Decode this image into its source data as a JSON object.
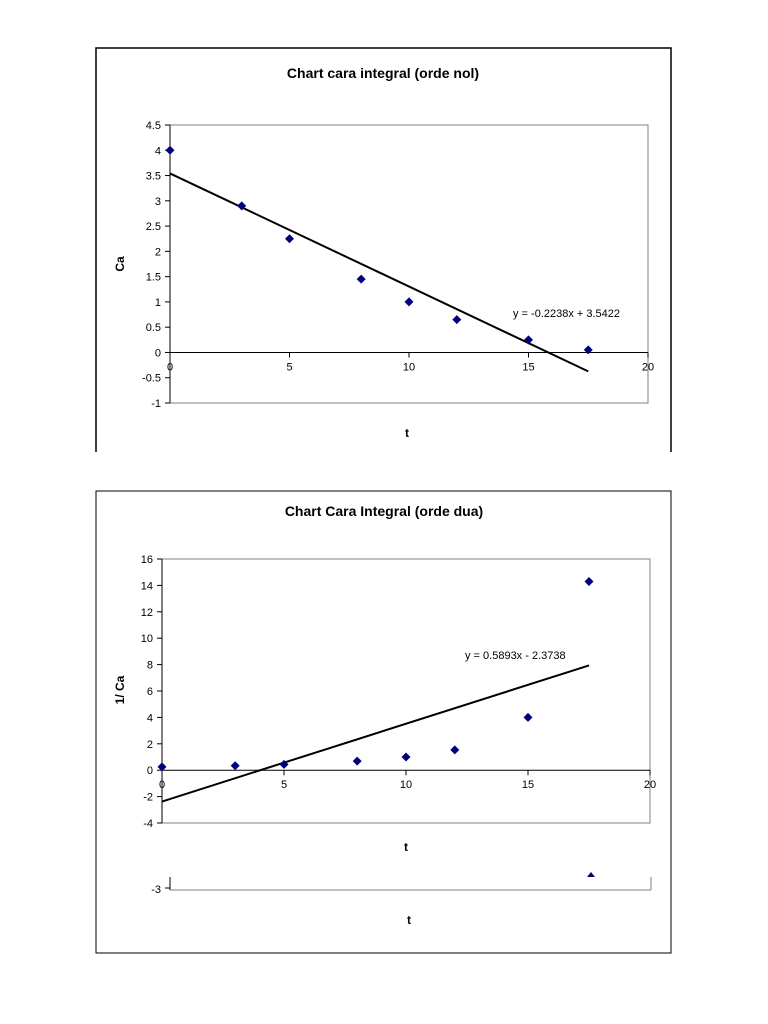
{
  "chart_data": [
    {
      "type": "scatter",
      "title": "Chart cara integral (orde nol)",
      "xlabel": "t",
      "ylabel": "Ca",
      "xlim": [
        0,
        20
      ],
      "ylim": [
        -1,
        4.5
      ],
      "xticks": [
        0,
        5,
        10,
        15,
        20
      ],
      "xtick_labels": [
        "0",
        "5",
        "10",
        "15",
        "20"
      ],
      "yticks": [
        -1,
        -0.5,
        0,
        0.5,
        1,
        1.5,
        2,
        2.5,
        3,
        3.5,
        4,
        4.5
      ],
      "ytick_labels": [
        "-1",
        "-0.5",
        "0",
        "0.5",
        "1",
        "1.5",
        "2",
        "2.5",
        "3",
        "3.5",
        "4",
        "4.5"
      ],
      "series": [
        {
          "x": [
            0,
            3,
            5,
            8,
            10,
            12,
            15,
            17.5
          ],
          "y": [
            4.0,
            2.9,
            2.25,
            1.45,
            1.0,
            0.65,
            0.25,
            0.05
          ],
          "color": "#00007f"
        }
      ],
      "trendline": {
        "slope": -0.2238,
        "intercept": 3.5422,
        "x_range": [
          0,
          17.5
        ]
      },
      "equation": "y = -0.2238x + 3.5422",
      "grid": false
    },
    {
      "type": "scatter",
      "title": "Chart Cara Integral (orde dua)",
      "xlabel": "t",
      "ylabel": "1/ Ca",
      "xlim": [
        0,
        20
      ],
      "ylim": [
        -4,
        16
      ],
      "xticks": [
        0,
        5,
        10,
        15,
        20
      ],
      "xtick_labels": [
        "0",
        "5",
        "10",
        "15",
        "20"
      ],
      "yticks": [
        -4,
        -2,
        0,
        2,
        4,
        6,
        8,
        10,
        12,
        14,
        16
      ],
      "ytick_labels": [
        "-4",
        "-2",
        "0",
        "2",
        "4",
        "6",
        "8",
        "10",
        "12",
        "14",
        "16"
      ],
      "series": [
        {
          "x": [
            0,
            3,
            5,
            8,
            10,
            12,
            15,
            17.5
          ],
          "y": [
            0.25,
            0.34,
            0.44,
            0.69,
            1.0,
            1.54,
            4.0,
            14.3
          ],
          "color": "#00007f"
        }
      ],
      "trendline": {
        "slope": 0.5893,
        "intercept": -2.3738,
        "x_range": [
          0,
          17.5
        ]
      },
      "equation": "y = 0.5893x - 2.3738",
      "grid": false
    }
  ],
  "fragment": {
    "ytick_label": "-3",
    "xlabel": "t"
  }
}
